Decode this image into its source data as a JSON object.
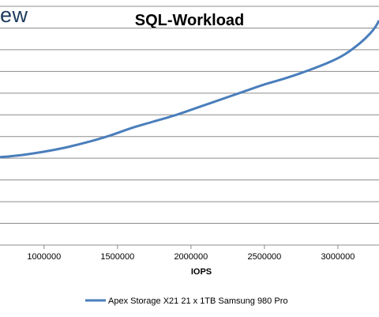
{
  "logo": {
    "text": "ew"
  },
  "chart_data": {
    "type": "line",
    "title": "SQL-Workload",
    "xlabel": "IOPS",
    "ylabel": "",
    "xlim": [
      700000,
      3280000
    ],
    "ylim": [
      0,
      11
    ],
    "xticks": [
      1000000,
      1500000,
      2000000,
      2500000,
      3000000
    ],
    "xtick_labels": [
      "1000000",
      "1500000",
      "2000000",
      "2500000",
      "3000000"
    ],
    "yticks": [
      1,
      2,
      3,
      4,
      5,
      6,
      7,
      8,
      9,
      10,
      11
    ],
    "grid": true,
    "legend_position": "bottom",
    "series": [
      {
        "name": "Apex Storage X21 21 x 1TB Samsung 980 Pro",
        "color": "#4a7ebb",
        "x": [
          700000,
          850000,
          1000000,
          1150000,
          1300000,
          1450000,
          1600000,
          1750000,
          1900000,
          2050000,
          2200000,
          2350000,
          2500000,
          2650000,
          2800000,
          2950000,
          3050000,
          3150000,
          3220000,
          3260000,
          3280000
        ],
        "y": [
          4.05,
          4.15,
          4.3,
          4.5,
          4.75,
          5.05,
          5.4,
          5.7,
          6.0,
          6.35,
          6.7,
          7.05,
          7.4,
          7.7,
          8.05,
          8.45,
          8.8,
          9.3,
          9.75,
          10.1,
          10.35
        ]
      }
    ]
  }
}
